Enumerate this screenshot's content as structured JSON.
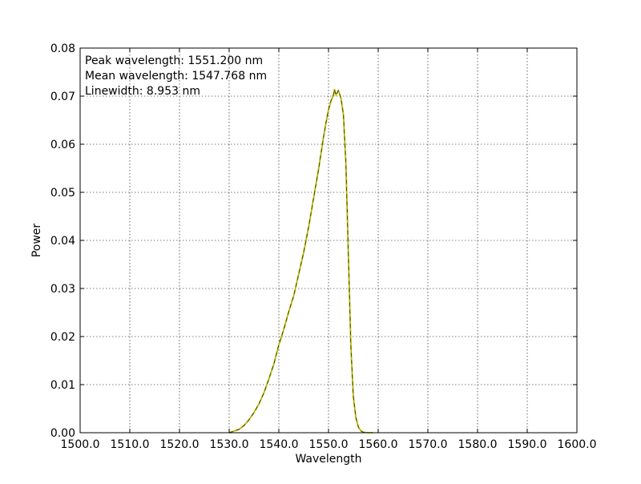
{
  "chart_data": {
    "type": "line",
    "title": "",
    "xlabel": "Wavelength",
    "ylabel": "Power",
    "xlim": [
      1500,
      1600
    ],
    "ylim": [
      0,
      0.08
    ],
    "grid": true,
    "xticks": [
      1500,
      1510,
      1520,
      1530,
      1540,
      1550,
      1560,
      1570,
      1580,
      1590,
      1600
    ],
    "xtick_labels": [
      "1500.0",
      "1510.0",
      "1520.0",
      "1530.0",
      "1540.0",
      "1550.0",
      "1560.0",
      "1570.0",
      "1580.0",
      "1590.0",
      "1600.0"
    ],
    "yticks": [
      0.0,
      0.01,
      0.02,
      0.03,
      0.04,
      0.05,
      0.06,
      0.07,
      0.08
    ],
    "ytick_labels": [
      "0.00",
      "0.01",
      "0.02",
      "0.03",
      "0.04",
      "0.05",
      "0.06",
      "0.07",
      "0.08"
    ],
    "annotations": [
      "Peak wavelength: 1551.200 nm",
      "Mean wavelength: 1547.768 nm",
      "Linewidth: 8.953 nm"
    ],
    "series": [
      {
        "color": "#b8b800",
        "x": [
          1530,
          1532,
          1533,
          1534,
          1535,
          1536,
          1537,
          1538,
          1539,
          1540,
          1541,
          1542,
          1543,
          1544,
          1545,
          1546,
          1547,
          1548,
          1549,
          1549.5,
          1550,
          1550.5,
          1551,
          1551.2,
          1551.5,
          1552,
          1552.5,
          1553,
          1553.5,
          1554,
          1554.5,
          1555,
          1555.5,
          1556,
          1556.5,
          1557,
          1558,
          1559
        ],
        "y": [
          0.0,
          0.0007,
          0.0015,
          0.0027,
          0.0042,
          0.006,
          0.0083,
          0.0112,
          0.0143,
          0.0183,
          0.0215,
          0.0252,
          0.0285,
          0.033,
          0.0375,
          0.0428,
          0.0488,
          0.0548,
          0.0615,
          0.0645,
          0.0672,
          0.069,
          0.0703,
          0.0714,
          0.0702,
          0.0712,
          0.0696,
          0.0662,
          0.056,
          0.037,
          0.018,
          0.0075,
          0.0032,
          0.0012,
          0.0004,
          0.0001,
          0.0,
          0.0
        ]
      }
    ]
  }
}
